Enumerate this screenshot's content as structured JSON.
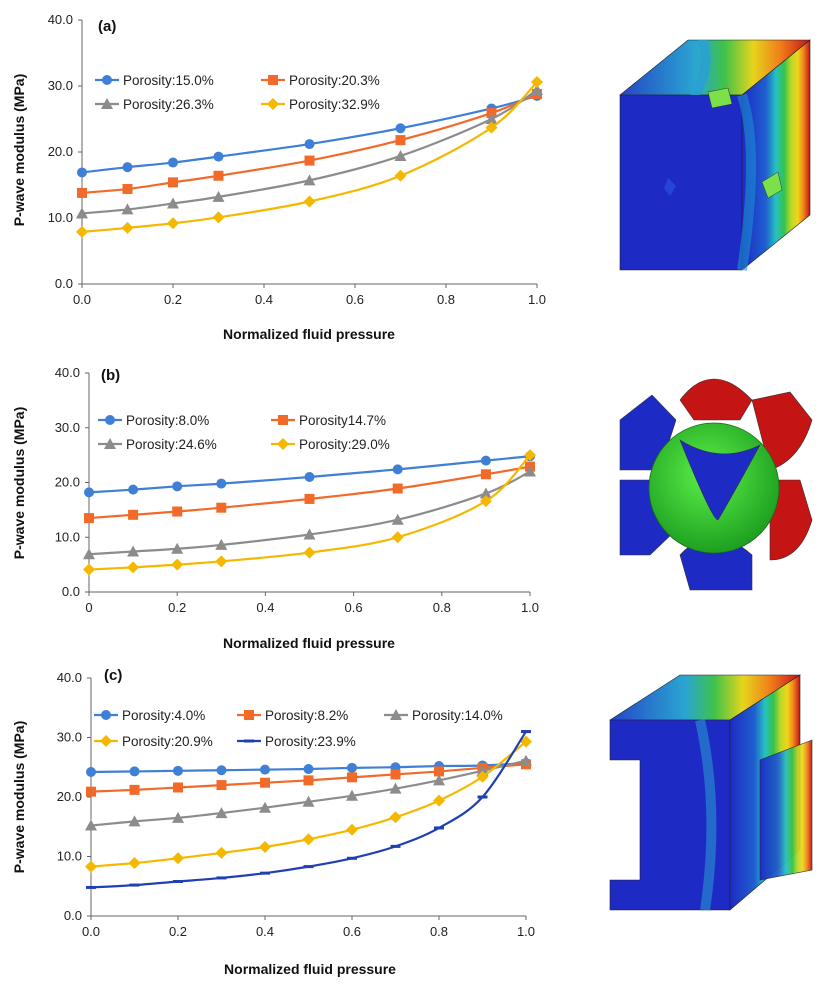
{
  "chart_data": [
    {
      "type": "line",
      "panel_label": "(a)",
      "xlabel": "Normalized fluid pressure",
      "ylabel": "P-wave modulus (MPa)",
      "xlim": [
        0,
        1
      ],
      "ylim": [
        0,
        40
      ],
      "xticks": [
        "0.0",
        "0.2",
        "0.4",
        "0.6",
        "0.8",
        "1.0"
      ],
      "yticks": [
        "0.0",
        "10.0",
        "20.0",
        "30.0",
        "40.0"
      ],
      "grid": false,
      "series": [
        {
          "name": "Porosity:15.0%",
          "color": "#3f7fd6",
          "marker": "circle",
          "x": [
            0,
            0.1,
            0.2,
            0.3,
            0.5,
            0.7,
            0.9,
            1.0
          ],
          "values": [
            16.9,
            17.7,
            18.4,
            19.3,
            21.2,
            23.6,
            26.6,
            28.5
          ]
        },
        {
          "name": "Porosity:20.3%",
          "color": "#f26a2a",
          "marker": "square",
          "x": [
            0,
            0.1,
            0.2,
            0.3,
            0.5,
            0.7,
            0.9,
            1.0
          ],
          "values": [
            13.8,
            14.4,
            15.4,
            16.4,
            18.7,
            21.8,
            25.9,
            28.8
          ]
        },
        {
          "name": "Porosity:26.3%",
          "color": "#8c8c8c",
          "marker": "triangle",
          "x": [
            0,
            0.1,
            0.2,
            0.3,
            0.5,
            0.7,
            0.9,
            1.0
          ],
          "values": [
            10.7,
            11.3,
            12.2,
            13.2,
            15.7,
            19.4,
            25.0,
            29.4
          ]
        },
        {
          "name": "Porosity:32.9%",
          "color": "#f5b800",
          "marker": "diamond",
          "x": [
            0,
            0.1,
            0.2,
            0.3,
            0.5,
            0.7,
            0.9,
            1.0
          ],
          "values": [
            7.9,
            8.5,
            9.2,
            10.1,
            12.5,
            16.4,
            23.7,
            30.6
          ]
        }
      ]
    },
    {
      "type": "line",
      "panel_label": "(b)",
      "xlabel": "Normalized fluid pressure",
      "ylabel": "P-wave modulus (MPa)",
      "xlim": [
        0,
        1
      ],
      "ylim": [
        0,
        40
      ],
      "xticks": [
        "0",
        "0.2",
        "0.4",
        "0.6",
        "0.8",
        "1.0"
      ],
      "yticks": [
        "0.0",
        "10.0",
        "20.0",
        "30.0",
        "40.0"
      ],
      "grid": false,
      "series": [
        {
          "name": "Porosity:8.0%",
          "color": "#3f7fd6",
          "marker": "circle",
          "x": [
            0,
            0.1,
            0.2,
            0.3,
            0.5,
            0.7,
            0.9,
            1.0
          ],
          "values": [
            18.2,
            18.7,
            19.3,
            19.8,
            21.0,
            22.4,
            24.0,
            24.8
          ]
        },
        {
          "name": "Porosity14.7%",
          "color": "#f26a2a",
          "marker": "square",
          "x": [
            0,
            0.1,
            0.2,
            0.3,
            0.5,
            0.7,
            0.9,
            1.0
          ],
          "values": [
            13.5,
            14.1,
            14.7,
            15.4,
            17.0,
            18.9,
            21.5,
            22.9
          ]
        },
        {
          "name": "Porosity:24.6%",
          "color": "#8c8c8c",
          "marker": "triangle",
          "x": [
            0,
            0.1,
            0.2,
            0.3,
            0.5,
            0.7,
            0.9,
            1.0
          ],
          "values": [
            6.9,
            7.4,
            7.9,
            8.6,
            10.5,
            13.2,
            18.0,
            22.0
          ]
        },
        {
          "name": "Porosity:29.0%",
          "color": "#f5b800",
          "marker": "diamond",
          "x": [
            0,
            0.1,
            0.2,
            0.3,
            0.5,
            0.7,
            0.9,
            1.0
          ],
          "values": [
            4.1,
            4.5,
            5.0,
            5.6,
            7.2,
            10.0,
            16.6,
            25.0
          ]
        }
      ]
    },
    {
      "type": "line",
      "panel_label": "(c)",
      "xlabel": "Normalized fluid pressure",
      "ylabel": "P-wave modulus (MPa)",
      "xlim": [
        0,
        1
      ],
      "ylim": [
        0,
        40
      ],
      "xticks": [
        "0.0",
        "0.2",
        "0.4",
        "0.6",
        "0.8",
        "1.0"
      ],
      "yticks": [
        "0.0",
        "10.0",
        "20.0",
        "30.0",
        "40.0"
      ],
      "grid": false,
      "series": [
        {
          "name": "Porosity:4.0%",
          "color": "#3f7fd6",
          "marker": "circle",
          "x": [
            0,
            0.1,
            0.2,
            0.3,
            0.4,
            0.5,
            0.6,
            0.7,
            0.8,
            0.9,
            1.0
          ],
          "values": [
            24.2,
            24.3,
            24.4,
            24.5,
            24.6,
            24.7,
            24.9,
            25.0,
            25.2,
            25.3,
            25.7
          ]
        },
        {
          "name": "Porosity:8.2%",
          "color": "#f26a2a",
          "marker": "square",
          "x": [
            0,
            0.1,
            0.2,
            0.3,
            0.4,
            0.5,
            0.6,
            0.7,
            0.8,
            0.9,
            1.0
          ],
          "values": [
            20.9,
            21.2,
            21.6,
            22.0,
            22.4,
            22.8,
            23.3,
            23.8,
            24.3,
            24.9,
            25.5
          ]
        },
        {
          "name": "Porosity:14.0%",
          "color": "#8c8c8c",
          "marker": "triangle",
          "x": [
            0,
            0.1,
            0.2,
            0.3,
            0.4,
            0.5,
            0.6,
            0.7,
            0.8,
            0.9,
            1.0
          ],
          "values": [
            15.2,
            15.9,
            16.5,
            17.3,
            18.2,
            19.2,
            20.2,
            21.4,
            22.8,
            24.4,
            26.1
          ]
        },
        {
          "name": "Porosity:20.9%",
          "color": "#f5b800",
          "marker": "diamond",
          "x": [
            0,
            0.1,
            0.2,
            0.3,
            0.4,
            0.5,
            0.6,
            0.7,
            0.8,
            0.9,
            1.0
          ],
          "values": [
            8.3,
            8.9,
            9.7,
            10.6,
            11.6,
            12.9,
            14.5,
            16.6,
            19.4,
            23.4,
            29.3
          ]
        },
        {
          "name": "Porosity:23.9%",
          "color": "#1f3fb4",
          "marker": "dash",
          "x": [
            0,
            0.1,
            0.2,
            0.3,
            0.4,
            0.5,
            0.6,
            0.7,
            0.8,
            0.9,
            1.0
          ],
          "values": [
            4.8,
            5.2,
            5.8,
            6.4,
            7.2,
            8.3,
            9.7,
            11.7,
            14.8,
            20.0,
            31.0
          ]
        }
      ]
    }
  ]
}
